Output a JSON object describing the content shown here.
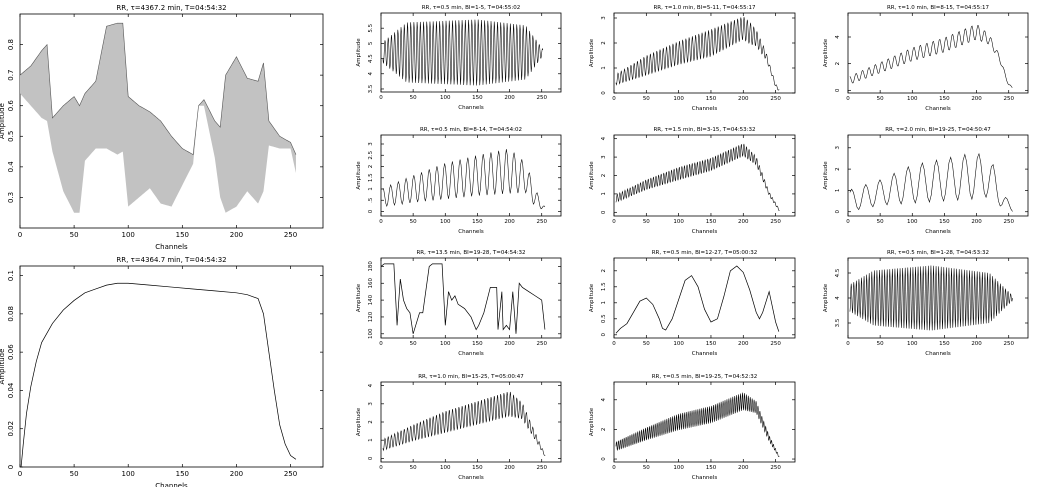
{
  "chart_data": [
    {
      "type": "line",
      "title": "RR, τ=4367.2 min, T=04:54:32",
      "xlabel": "Channels",
      "ylabel": "Amplitude",
      "xlim": [
        0,
        280
      ],
      "ylim": [
        0.2,
        0.9
      ],
      "xticks": [
        0,
        50,
        100,
        150,
        200,
        250
      ],
      "yticks": [
        0.3,
        0.4,
        0.5,
        0.6,
        0.7,
        0.8
      ],
      "ytick_labels": [
        "0.3",
        "0.4",
        "0.5",
        "0.6",
        "0.7",
        "0.8"
      ],
      "style": "filled-band",
      "grid": false,
      "envelope": {
        "channels": [
          0,
          10,
          20,
          25,
          30,
          40,
          50,
          55,
          60,
          70,
          80,
          90,
          95,
          100,
          110,
          120,
          130,
          140,
          150,
          160,
          165,
          170,
          180,
          185,
          190,
          200,
          210,
          220,
          225,
          230,
          240,
          250,
          255
        ],
        "upper": [
          0.7,
          0.73,
          0.78,
          0.8,
          0.56,
          0.6,
          0.63,
          0.6,
          0.64,
          0.68,
          0.86,
          0.87,
          0.87,
          0.63,
          0.6,
          0.58,
          0.55,
          0.5,
          0.46,
          0.44,
          0.6,
          0.62,
          0.55,
          0.53,
          0.7,
          0.76,
          0.69,
          0.68,
          0.74,
          0.55,
          0.5,
          0.48,
          0.44
        ],
        "lower": [
          0.64,
          0.6,
          0.56,
          0.55,
          0.45,
          0.32,
          0.25,
          0.25,
          0.42,
          0.46,
          0.46,
          0.44,
          0.45,
          0.27,
          0.3,
          0.33,
          0.28,
          0.27,
          0.34,
          0.41,
          0.6,
          0.6,
          0.43,
          0.3,
          0.25,
          0.27,
          0.32,
          0.28,
          0.32,
          0.47,
          0.46,
          0.46,
          0.38
        ]
      }
    },
    {
      "type": "line",
      "title": "RR, τ=4364.7 min, T=04:54:32",
      "xlabel": "Channels",
      "ylabel": "Amplitude",
      "xlim": [
        0,
        280
      ],
      "ylim": [
        0,
        0.105
      ],
      "xticks": [
        0,
        50,
        100,
        150,
        200,
        250
      ],
      "yticks": [
        0,
        0.02,
        0.04,
        0.06,
        0.08,
        0.1
      ],
      "ytick_labels": [
        "0",
        "0.02",
        "0.04",
        "0.06",
        "0.08",
        "0.1"
      ],
      "style": "line",
      "grid": false,
      "x": [
        1,
        3,
        6,
        10,
        15,
        20,
        30,
        40,
        50,
        60,
        70,
        80,
        90,
        100,
        120,
        140,
        160,
        180,
        200,
        210,
        220,
        225,
        230,
        235,
        240,
        245,
        250,
        255
      ],
      "y": [
        0,
        0.012,
        0.028,
        0.042,
        0.055,
        0.065,
        0.075,
        0.082,
        0.087,
        0.091,
        0.093,
        0.095,
        0.096,
        0.096,
        0.095,
        0.094,
        0.093,
        0.092,
        0.091,
        0.09,
        0.088,
        0.08,
        0.06,
        0.04,
        0.022,
        0.012,
        0.006,
        0.004
      ]
    },
    {
      "type": "line",
      "title": "RR, τ=0.5 min, BI=1-5, T=04:55:02",
      "xlabel": "Channels",
      "ylabel": "Amplitude",
      "xlim": [
        0,
        280
      ],
      "ylim": [
        3.4,
        6.0
      ],
      "xticks": [
        0,
        50,
        100,
        150,
        200,
        250
      ],
      "yticks": [
        3.5,
        4,
        4.5,
        5,
        5.5
      ],
      "ytick_labels": [
        "3.5",
        "4",
        "4.5",
        "5",
        "5.5"
      ],
      "style": "oscillation",
      "grid": false,
      "x_range": [
        3,
        252
      ],
      "period": 5,
      "base": [
        [
          0,
          4.7
        ],
        [
          120,
          4.7
        ],
        [
          250,
          4.7
        ]
      ],
      "amplitude": [
        [
          0,
          0.3
        ],
        [
          40,
          1.0
        ],
        [
          150,
          1.1
        ],
        [
          225,
          0.9
        ],
        [
          252,
          0.1
        ]
      ]
    },
    {
      "type": "line",
      "title": "RR, τ=1.0 min, BI=5-11, T=04:55:17",
      "xlabel": "Channels",
      "ylabel": "Amplitude",
      "xlim": [
        0,
        280
      ],
      "ylim": [
        0,
        3.2
      ],
      "xticks": [
        0,
        50,
        100,
        150,
        200,
        250
      ],
      "yticks": [
        0,
        1,
        2,
        3
      ],
      "ytick_labels": [
        "0",
        "1",
        "2",
        "3"
      ],
      "style": "oscillation",
      "grid": false,
      "x_range": [
        3,
        256
      ],
      "period": 5,
      "base": [
        [
          0,
          0.5
        ],
        [
          50,
          1.1
        ],
        [
          100,
          1.6
        ],
        [
          150,
          2.0
        ],
        [
          200,
          2.6
        ],
        [
          220,
          2.2
        ],
        [
          235,
          1.5
        ],
        [
          250,
          0.3
        ],
        [
          256,
          0.1
        ]
      ],
      "amplitude": [
        [
          0,
          0.2
        ],
        [
          50,
          0.4
        ],
        [
          150,
          0.55
        ],
        [
          210,
          0.45
        ],
        [
          240,
          0.1
        ],
        [
          256,
          0.05
        ]
      ]
    },
    {
      "type": "line",
      "title": "RR, τ=1.0 min, BI=8-15, T=04:55:17",
      "xlabel": "Channels",
      "ylabel": "Amplitude",
      "xlim": [
        0,
        280
      ],
      "ylim": [
        -0.2,
        5.8
      ],
      "xticks": [
        0,
        50,
        100,
        150,
        200,
        250
      ],
      "yticks": [
        0,
        2,
        4
      ],
      "ytick_labels": [
        "0",
        "2",
        "4"
      ],
      "style": "oscillation",
      "grid": false,
      "x_range": [
        3,
        256
      ],
      "period": 10,
      "base": [
        [
          0,
          0.7
        ],
        [
          50,
          1.7
        ],
        [
          100,
          2.7
        ],
        [
          150,
          3.4
        ],
        [
          200,
          4.4
        ],
        [
          220,
          3.8
        ],
        [
          235,
          2.5
        ],
        [
          250,
          0.4
        ],
        [
          256,
          0.2
        ]
      ],
      "amplitude": [
        [
          0,
          0.3
        ],
        [
          100,
          0.5
        ],
        [
          200,
          0.6
        ],
        [
          235,
          0.2
        ],
        [
          256,
          0.05
        ]
      ]
    },
    {
      "type": "line",
      "title": "RR, τ=0.5 min, BI=8-14, T=04:54:02",
      "xlabel": "Channels",
      "ylabel": "Amplitude",
      "xlim": [
        0,
        280
      ],
      "ylim": [
        -0.2,
        3.4
      ],
      "xticks": [
        0,
        50,
        100,
        150,
        200,
        250
      ],
      "yticks": [
        0,
        0.5,
        1,
        1.5,
        2,
        2.5,
        3
      ],
      "ytick_labels": [
        "0",
        ".5",
        "1",
        "1.5",
        "2",
        "2.5",
        "3"
      ],
      "style": "oscillation",
      "grid": false,
      "x_range": [
        3,
        256
      ],
      "period": 12,
      "base": [
        [
          0,
          0.6
        ],
        [
          50,
          1.0
        ],
        [
          100,
          1.35
        ],
        [
          150,
          1.6
        ],
        [
          200,
          1.8
        ],
        [
          225,
          1.5
        ],
        [
          240,
          0.6
        ],
        [
          256,
          0.1
        ]
      ],
      "amplitude": [
        [
          0,
          0.4
        ],
        [
          50,
          0.6
        ],
        [
          100,
          0.8
        ],
        [
          200,
          1.0
        ],
        [
          230,
          0.6
        ],
        [
          256,
          0.05
        ]
      ]
    },
    {
      "type": "line",
      "title": "RR, τ=1.5 min, BI=3-15, T=04:53:32",
      "xlabel": "Channels",
      "ylabel": "Amplitude",
      "xlim": [
        0,
        280
      ],
      "ylim": [
        -0.2,
        4.2
      ],
      "xticks": [
        0,
        50,
        100,
        150,
        200,
        250
      ],
      "yticks": [
        0,
        1,
        2,
        3,
        4
      ],
      "ytick_labels": [
        "0",
        "1",
        "2",
        "3",
        "4"
      ],
      "style": "oscillation",
      "grid": false,
      "x_range": [
        3,
        256
      ],
      "period": 4,
      "base": [
        [
          0,
          0.7
        ],
        [
          50,
          1.5
        ],
        [
          100,
          2.1
        ],
        [
          150,
          2.6
        ],
        [
          200,
          3.4
        ],
        [
          220,
          2.8
        ],
        [
          240,
          1.0
        ],
        [
          256,
          0.1
        ]
      ],
      "amplitude": [
        [
          0,
          0.2
        ],
        [
          100,
          0.35
        ],
        [
          200,
          0.35
        ],
        [
          240,
          0.1
        ],
        [
          256,
          0.05
        ]
      ]
    },
    {
      "type": "line",
      "title": "RR, τ=2.0 min, BI=19-25, T=04:50:47",
      "xlabel": "Channels",
      "ylabel": "Amplitude",
      "xlim": [
        0,
        280
      ],
      "ylim": [
        -0.2,
        3.6
      ],
      "xticks": [
        0,
        50,
        100,
        150,
        200,
        250
      ],
      "yticks": [
        0,
        1,
        2,
        3
      ],
      "ytick_labels": [
        "0",
        "1",
        "2",
        "3"
      ],
      "style": "oscillation",
      "grid": false,
      "x_range": [
        3,
        256
      ],
      "period": 22,
      "base": [
        [
          0,
          0.5
        ],
        [
          50,
          0.9
        ],
        [
          100,
          1.3
        ],
        [
          150,
          1.5
        ],
        [
          200,
          1.7
        ],
        [
          225,
          1.5
        ],
        [
          240,
          0.6
        ],
        [
          256,
          0.05
        ]
      ],
      "amplitude": [
        [
          0,
          0.5
        ],
        [
          50,
          0.6
        ],
        [
          100,
          0.9
        ],
        [
          200,
          1.1
        ],
        [
          230,
          0.7
        ],
        [
          256,
          0.05
        ]
      ]
    },
    {
      "type": "line",
      "title": "RR, τ=13.5 min, BI=19-28, T=04:54:32",
      "xlabel": "Channels",
      "ylabel": "Amplitude",
      "xlim": [
        0,
        280
      ],
      "ylim": [
        95,
        190
      ],
      "xticks": [
        0,
        50,
        100,
        150,
        200,
        250
      ],
      "yticks": [
        100,
        120,
        140,
        160,
        180
      ],
      "ytick_labels": [
        "100",
        "120",
        "140",
        "160",
        "180"
      ],
      "style": "line",
      "grid": false,
      "x": [
        0,
        5,
        20,
        25,
        30,
        35,
        40,
        45,
        50,
        60,
        65,
        75,
        80,
        95,
        100,
        105,
        110,
        115,
        120,
        130,
        140,
        148,
        152,
        160,
        170,
        180,
        182,
        188,
        190,
        195,
        200,
        205,
        210,
        215,
        220,
        230,
        240,
        250,
        255
      ],
      "y": [
        180,
        183,
        183,
        110,
        165,
        140,
        130,
        125,
        100,
        125,
        125,
        180,
        183,
        183,
        110,
        150,
        140,
        145,
        135,
        130,
        120,
        105,
        110,
        125,
        155,
        155,
        105,
        150,
        105,
        110,
        105,
        150,
        100,
        160,
        155,
        150,
        145,
        140,
        105
      ]
    },
    {
      "type": "line",
      "title": "RR, τ=0.5 min, BI=12-27, T=05:00:32",
      "xlabel": "Channels",
      "ylabel": "Amplitude",
      "xlim": [
        0,
        280
      ],
      "ylim": [
        -0.1,
        2.4
      ],
      "xticks": [
        0,
        50,
        100,
        150,
        200,
        250
      ],
      "yticks": [
        0,
        0.5,
        1,
        1.5,
        2
      ],
      "ytick_labels": [
        "0",
        "0.5",
        "1",
        "1.5",
        "2"
      ],
      "style": "line",
      "grid": false,
      "x": [
        3,
        10,
        20,
        30,
        40,
        50,
        60,
        70,
        75,
        80,
        90,
        100,
        110,
        120,
        130,
        140,
        150,
        160,
        170,
        180,
        190,
        200,
        210,
        220,
        225,
        230,
        240,
        250,
        255
      ],
      "y": [
        0.05,
        0.2,
        0.35,
        0.7,
        1.05,
        1.15,
        0.95,
        0.5,
        0.2,
        0.15,
        0.5,
        1.1,
        1.7,
        1.85,
        1.5,
        0.8,
        0.4,
        0.5,
        1.2,
        2.0,
        2.15,
        1.95,
        1.4,
        0.7,
        0.5,
        0.7,
        1.35,
        0.4,
        0.1
      ]
    },
    {
      "type": "line",
      "title": "RR, τ=0.5 min, BI=1-28, T=04:53:32",
      "xlabel": "Channels",
      "ylabel": "Amplitude",
      "xlim": [
        0,
        280
      ],
      "ylim": [
        3.2,
        4.8
      ],
      "xticks": [
        0,
        50,
        100,
        150,
        200,
        250
      ],
      "yticks": [
        3.5,
        4,
        4.5
      ],
      "ytick_labels": [
        "3.5",
        "4",
        "4.5"
      ],
      "style": "oscillation",
      "grid": false,
      "x_range": [
        3,
        256
      ],
      "period": 4,
      "base": [
        [
          0,
          4.0
        ],
        [
          256,
          4.0
        ]
      ],
      "amplitude": [
        [
          0,
          0.25
        ],
        [
          40,
          0.55
        ],
        [
          130,
          0.65
        ],
        [
          220,
          0.5
        ],
        [
          256,
          0.05
        ]
      ]
    },
    {
      "type": "line",
      "title": "RR, τ=1.0 min, BI=15-25, T=05:00:47",
      "xlabel": "Channels",
      "ylabel": "Amplitude",
      "xlim": [
        0,
        280
      ],
      "ylim": [
        -0.2,
        4.2
      ],
      "xticks": [
        0,
        50,
        100,
        150,
        200,
        250
      ],
      "yticks": [
        0,
        1,
        2,
        3,
        4
      ],
      "ytick_labels": [
        "0",
        "1",
        "2",
        "3",
        "4"
      ],
      "style": "oscillation",
      "grid": false,
      "x_range": [
        3,
        256
      ],
      "period": 5,
      "base": [
        [
          0,
          0.7
        ],
        [
          50,
          1.4
        ],
        [
          100,
          2.0
        ],
        [
          150,
          2.5
        ],
        [
          200,
          3.0
        ],
        [
          220,
          2.6
        ],
        [
          240,
          1.2
        ],
        [
          256,
          0.1
        ]
      ],
      "amplitude": [
        [
          0,
          0.3
        ],
        [
          100,
          0.6
        ],
        [
          200,
          0.7
        ],
        [
          240,
          0.2
        ],
        [
          256,
          0.05
        ]
      ]
    },
    {
      "type": "line",
      "title": "RR, τ=0.5 min, BI=19-25, T=04:52:32",
      "xlabel": "Channels",
      "ylabel": "Amplitude",
      "xlim": [
        0,
        280
      ],
      "ylim": [
        -0.2,
        5.2
      ],
      "xticks": [
        0,
        50,
        100,
        150,
        200,
        250
      ],
      "yticks": [
        0,
        2,
        4
      ],
      "ytick_labels": [
        "0",
        "2",
        "4"
      ],
      "style": "oscillation",
      "grid": false,
      "x_range": [
        3,
        256
      ],
      "period": 3,
      "base": [
        [
          0,
          0.8
        ],
        [
          50,
          1.7
        ],
        [
          100,
          2.5
        ],
        [
          150,
          3.0
        ],
        [
          200,
          3.9
        ],
        [
          220,
          3.5
        ],
        [
          240,
          1.4
        ],
        [
          256,
          0.1
        ]
      ],
      "amplitude": [
        [
          0,
          0.3
        ],
        [
          100,
          0.55
        ],
        [
          200,
          0.6
        ],
        [
          240,
          0.2
        ],
        [
          256,
          0.05
        ]
      ]
    }
  ]
}
